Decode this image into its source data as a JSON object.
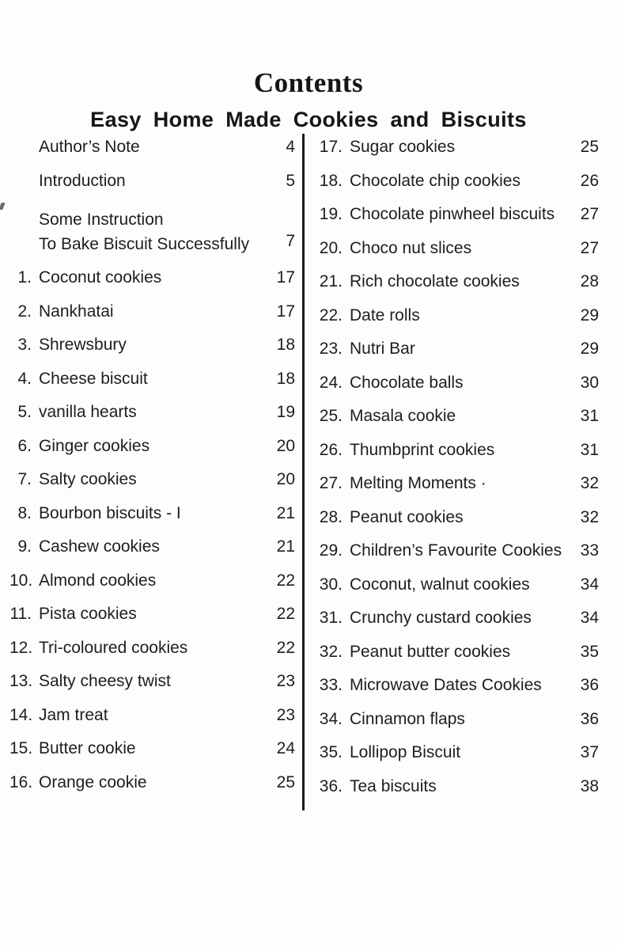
{
  "colors": {
    "background": "#fdfdfc",
    "text": "#1e1e1e",
    "divider": "#1a1a1a"
  },
  "page": {
    "title": "Contents",
    "subtitle": "Easy Home Made Cookies and Biscuits"
  },
  "toc": {
    "front_matter": [
      {
        "label": "Author’s Note",
        "page": "4"
      },
      {
        "label": "Introduction",
        "page": "5"
      },
      {
        "label": "Some Instruction",
        "label_line2": "To Bake Biscuit Successfully",
        "page": "7"
      }
    ],
    "left_entries": [
      {
        "num": "1.",
        "label": "Coconut cookies",
        "page": "17"
      },
      {
        "num": "2.",
        "label": "Nankhatai",
        "page": "17"
      },
      {
        "num": "3.",
        "label": "Shrewsbury",
        "page": "18"
      },
      {
        "num": "4.",
        "label": "Cheese biscuit",
        "page": "18"
      },
      {
        "num": "5.",
        "label": "vanilla hearts",
        "page": "19"
      },
      {
        "num": "6.",
        "label": "Ginger cookies",
        "page": "20"
      },
      {
        "num": "7.",
        "label": "Salty cookies",
        "page": "20"
      },
      {
        "num": "8.",
        "label": "Bourbon biscuits - I",
        "page": "21"
      },
      {
        "num": "9.",
        "label": "Cashew cookies",
        "page": "21"
      },
      {
        "num": "10.",
        "label": "Almond cookies",
        "page": "22"
      },
      {
        "num": "11.",
        "label": "Pista cookies",
        "page": "22"
      },
      {
        "num": "12.",
        "label": "Tri-coloured cookies",
        "page": "22"
      },
      {
        "num": "13.",
        "label": "Salty cheesy twist",
        "page": "23"
      },
      {
        "num": "14.",
        "label": "Jam treat",
        "page": "23"
      },
      {
        "num": "15.",
        "label": "Butter cookie",
        "page": "24"
      },
      {
        "num": "16.",
        "label": "Orange cookie",
        "page": "25"
      }
    ],
    "right_entries": [
      {
        "num": "17.",
        "label": "Sugar cookies",
        "page": "25"
      },
      {
        "num": "18.",
        "label": "Chocolate chip cookies",
        "page": "26"
      },
      {
        "num": "19.",
        "label": "Chocolate pinwheel biscuits",
        "page": "27"
      },
      {
        "num": "20.",
        "label": "Choco nut slices",
        "page": "27"
      },
      {
        "num": "21.",
        "label": "Rich chocolate cookies",
        "page": "28"
      },
      {
        "num": "22.",
        "label": "Date rolls",
        "page": "29"
      },
      {
        "num": "23.",
        "label": "Nutri Bar",
        "page": "29"
      },
      {
        "num": "24.",
        "label": "Chocolate balls",
        "page": "30"
      },
      {
        "num": "25.",
        "label": "Masala cookie",
        "page": "31"
      },
      {
        "num": "26.",
        "label": "Thumbprint cookies",
        "page": "31"
      },
      {
        "num": "27.",
        "label": "Melting Moments ·",
        "page": "32"
      },
      {
        "num": "28.",
        "label": "Peanut cookies",
        "page": "32"
      },
      {
        "num": "29.",
        "label": "Children’s Favourite Cookies",
        "page": "33"
      },
      {
        "num": "30.",
        "label": "Coconut, walnut cookies",
        "page": "34"
      },
      {
        "num": "31.",
        "label": "Crunchy custard cookies",
        "page": "34"
      },
      {
        "num": "32.",
        "label": "Peanut butter cookies",
        "page": "35"
      },
      {
        "num": "33.",
        "label": "Microwave Dates Cookies",
        "page": "36"
      },
      {
        "num": "34.",
        "label": "Cinnamon flaps",
        "page": "36"
      },
      {
        "num": "35.",
        "label": "Lollipop Biscuit",
        "page": "37"
      },
      {
        "num": "36.",
        "label": "Tea biscuits",
        "page": "38"
      }
    ]
  }
}
